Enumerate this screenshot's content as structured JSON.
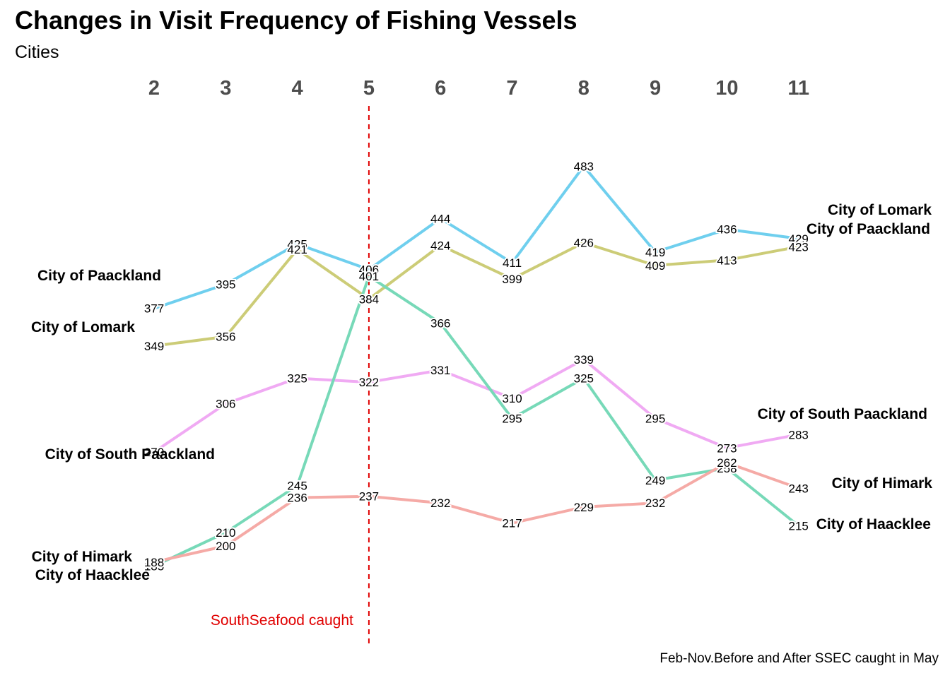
{
  "title": "Changes in Visit Frequency of Fishing Vessels",
  "subtitle": "Cities",
  "caption": "Feb-Nov.Before and After SSEC caught in May",
  "chart_data": {
    "type": "line",
    "title": "Changes in Visit Frequency of Fishing Vessels",
    "subtitle": "Cities",
    "x": [
      2,
      3,
      4,
      5,
      6,
      7,
      8,
      9,
      10,
      11
    ],
    "series": [
      {
        "name": "City of Paackland",
        "color": "#6fcfee",
        "values": [
          377,
          395,
          425,
          406,
          444,
          411,
          483,
          419,
          436,
          429
        ]
      },
      {
        "name": "City of Lomark",
        "color": "#cccc77",
        "values": [
          349,
          356,
          421,
          384,
          424,
          399,
          426,
          409,
          413,
          423
        ]
      },
      {
        "name": "City of South Paackland",
        "color": "#f0aaf3",
        "values": [
          270,
          306,
          325,
          322,
          331,
          310,
          339,
          295,
          273,
          283
        ]
      },
      {
        "name": "City of Haacklee",
        "color": "#77d9b8",
        "values": [
          185,
          210,
          245,
          401,
          366,
          295,
          325,
          249,
          258,
          215
        ]
      },
      {
        "name": "City of Himark",
        "color": "#f5aaa6",
        "values": [
          188,
          200,
          236,
          237,
          232,
          217,
          229,
          232,
          262,
          243
        ]
      }
    ],
    "annotation": {
      "x": 5,
      "text": "SouthSeafood caught",
      "color": "#e00000",
      "line": "dashed vertical"
    },
    "left_labels": [
      "City of Paackland",
      "City of Lomark",
      "City of South Paackland",
      "City of Himark",
      "City of Haacklee"
    ],
    "right_labels": [
      "City of Lomark",
      "City of Paackland",
      "City of South Paackland",
      "City of Himark",
      "City of Haacklee"
    ],
    "legend": "none",
    "grid": false
  }
}
